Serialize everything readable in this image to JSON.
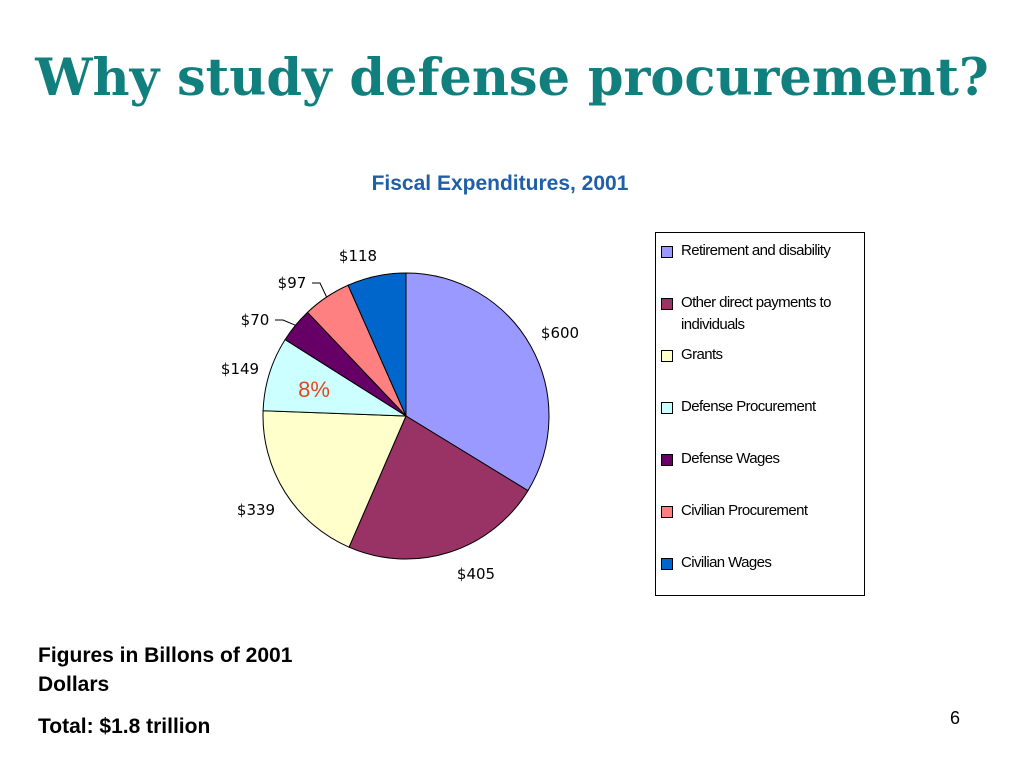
{
  "slide": {
    "title": "Why study defense procurement?",
    "page_number": "6"
  },
  "notes": {
    "units": "Figures in Billons of 2001 Dollars",
    "total": "Total: $1.8 trillion"
  },
  "colors": {
    "title": "#127f7f",
    "chart_title": "#1f5ea8",
    "callout": "#e8461d"
  },
  "chart_data": {
    "type": "pie",
    "title": "Fiscal Expenditures, 2001",
    "start_angle_deg": 0,
    "direction": "clockwise",
    "legend_position": "right",
    "slices": [
      {
        "label": "Retirement and disability",
        "value": 600,
        "data_label": "$600",
        "color": "#9999ff"
      },
      {
        "label": "Other direct payments to individuals",
        "value": 405,
        "data_label": "$405",
        "color": "#993366"
      },
      {
        "label": "Grants",
        "value": 339,
        "data_label": "$339",
        "color": "#ffffcc"
      },
      {
        "label": "Defense Procurement",
        "value": 149,
        "data_label": "$149",
        "color": "#ccffff"
      },
      {
        "label": "Defense Wages",
        "value": 70,
        "data_label": "$70",
        "color": "#660066"
      },
      {
        "label": "Civilian Procurement",
        "value": 97,
        "data_label": "$97",
        "color": "#ff8080"
      },
      {
        "label": "Civilian Wages",
        "value": 118,
        "data_label": "$118",
        "color": "#0066cc"
      }
    ],
    "callout": {
      "slice": "Defense Procurement",
      "text": "8%"
    }
  }
}
